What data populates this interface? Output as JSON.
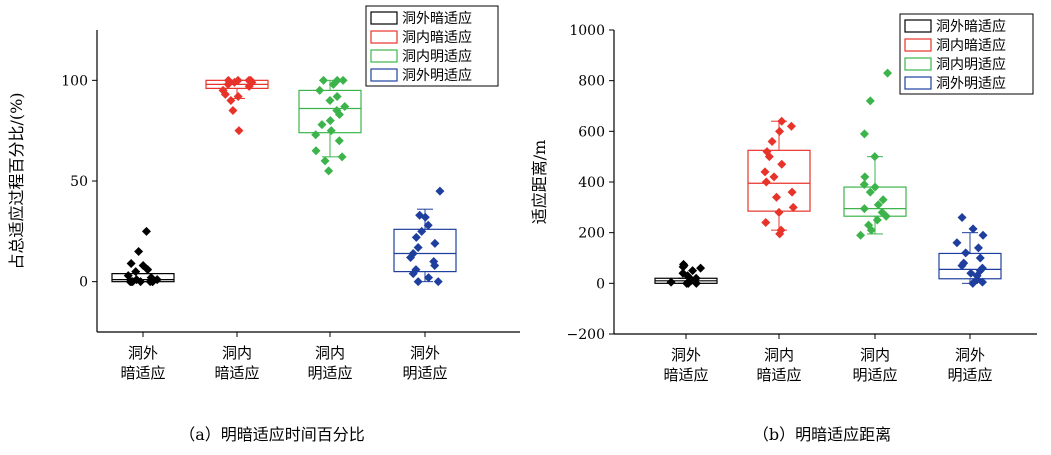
{
  "chart_data": [
    {
      "type": "box",
      "panel_caption": "（a）明暗适应时间百分比",
      "ylabel": "占总适应过程百分比/(%)",
      "ylim": [
        -25,
        125
      ],
      "yticks": [
        0,
        50,
        100
      ],
      "categories": [
        [
          "洞外",
          "暗适应"
        ],
        [
          "洞内",
          "暗适应"
        ],
        [
          "洞内",
          "明适应"
        ],
        [
          "洞外",
          "明适应"
        ]
      ],
      "legend": [
        "洞外暗适应",
        "洞内暗适应",
        "洞内明适应",
        "洞外明适应"
      ],
      "legend_position": "top-right",
      "colors": [
        "#000000",
        "#e8332a",
        "#3cb44b",
        "#1f3f9f"
      ],
      "series": [
        {
          "name": "洞外暗适应",
          "box": {
            "q1": 0,
            "median": 1,
            "q3": 4,
            "whisker_low": 0,
            "whisker_high": 4
          },
          "points": [
            0,
            0,
            0,
            0,
            0,
            0,
            0,
            1,
            1,
            2,
            3,
            5,
            6,
            8,
            9,
            15,
            25
          ]
        },
        {
          "name": "洞内暗适应",
          "box": {
            "q1": 96,
            "median": 98,
            "q3": 100,
            "whisker_low": 91,
            "whisker_high": 100
          },
          "points": [
            75,
            85,
            90,
            92,
            93,
            95,
            97,
            98,
            99,
            99,
            100,
            100,
            100,
            100
          ]
        },
        {
          "name": "洞内明适应",
          "box": {
            "q1": 74,
            "median": 86,
            "q3": 95,
            "whisker_low": 62,
            "whisker_high": 100
          },
          "points": [
            55,
            60,
            62,
            65,
            70,
            73,
            75,
            78,
            80,
            83,
            85,
            87,
            90,
            92,
            95,
            98,
            100,
            100,
            100
          ]
        },
        {
          "name": "洞外明适应",
          "box": {
            "q1": 5,
            "median": 14,
            "q3": 26,
            "whisker_low": 0,
            "whisker_high": 36
          },
          "points": [
            0,
            0,
            2,
            4,
            6,
            8,
            10,
            12,
            14,
            17,
            19,
            22,
            25,
            28,
            32,
            33,
            45
          ]
        }
      ]
    },
    {
      "type": "box",
      "panel_caption": "（b）明暗适应距离",
      "ylabel": "适应距离/m",
      "ylim": [
        -200,
        1000
      ],
      "yticks": [
        -200,
        0,
        200,
        400,
        600,
        800,
        1000
      ],
      "categories": [
        [
          "洞外",
          "暗适应"
        ],
        [
          "洞内",
          "暗适应"
        ],
        [
          "洞内",
          "明适应"
        ],
        [
          "洞外",
          "明适应"
        ]
      ],
      "legend": [
        "洞外暗适应",
        "洞内暗适应",
        "洞内明适应",
        "洞外明适应"
      ],
      "legend_position": "top-right",
      "colors": [
        "#000000",
        "#e8332a",
        "#3cb44b",
        "#1f3f9f"
      ],
      "series": [
        {
          "name": "洞外暗适应",
          "box": {
            "q1": 0,
            "median": 10,
            "q3": 20,
            "whisker_low": 0,
            "whisker_high": 20
          },
          "points": [
            0,
            0,
            0,
            5,
            10,
            15,
            20,
            30,
            40,
            50,
            60,
            65,
            70,
            75
          ]
        },
        {
          "name": "洞内暗适应",
          "box": {
            "q1": 285,
            "median": 395,
            "q3": 525,
            "whisker_low": 210,
            "whisker_high": 640
          },
          "points": [
            195,
            210,
            240,
            280,
            300,
            340,
            360,
            400,
            420,
            440,
            470,
            500,
            520,
            560,
            600,
            620,
            640
          ]
        },
        {
          "name": "洞内明适应",
          "box": {
            "q1": 265,
            "median": 295,
            "q3": 380,
            "whisker_low": 195,
            "whisker_high": 500
          },
          "points": [
            190,
            210,
            230,
            250,
            265,
            280,
            295,
            310,
            330,
            360,
            380,
            390,
            420,
            500,
            590,
            720,
            830
          ]
        },
        {
          "name": "洞外明适应",
          "box": {
            "q1": 18,
            "median": 55,
            "q3": 118,
            "whisker_low": 0,
            "whisker_high": 200
          },
          "points": [
            0,
            5,
            15,
            30,
            40,
            50,
            60,
            70,
            80,
            100,
            120,
            140,
            160,
            190,
            215,
            260
          ]
        }
      ]
    }
  ]
}
